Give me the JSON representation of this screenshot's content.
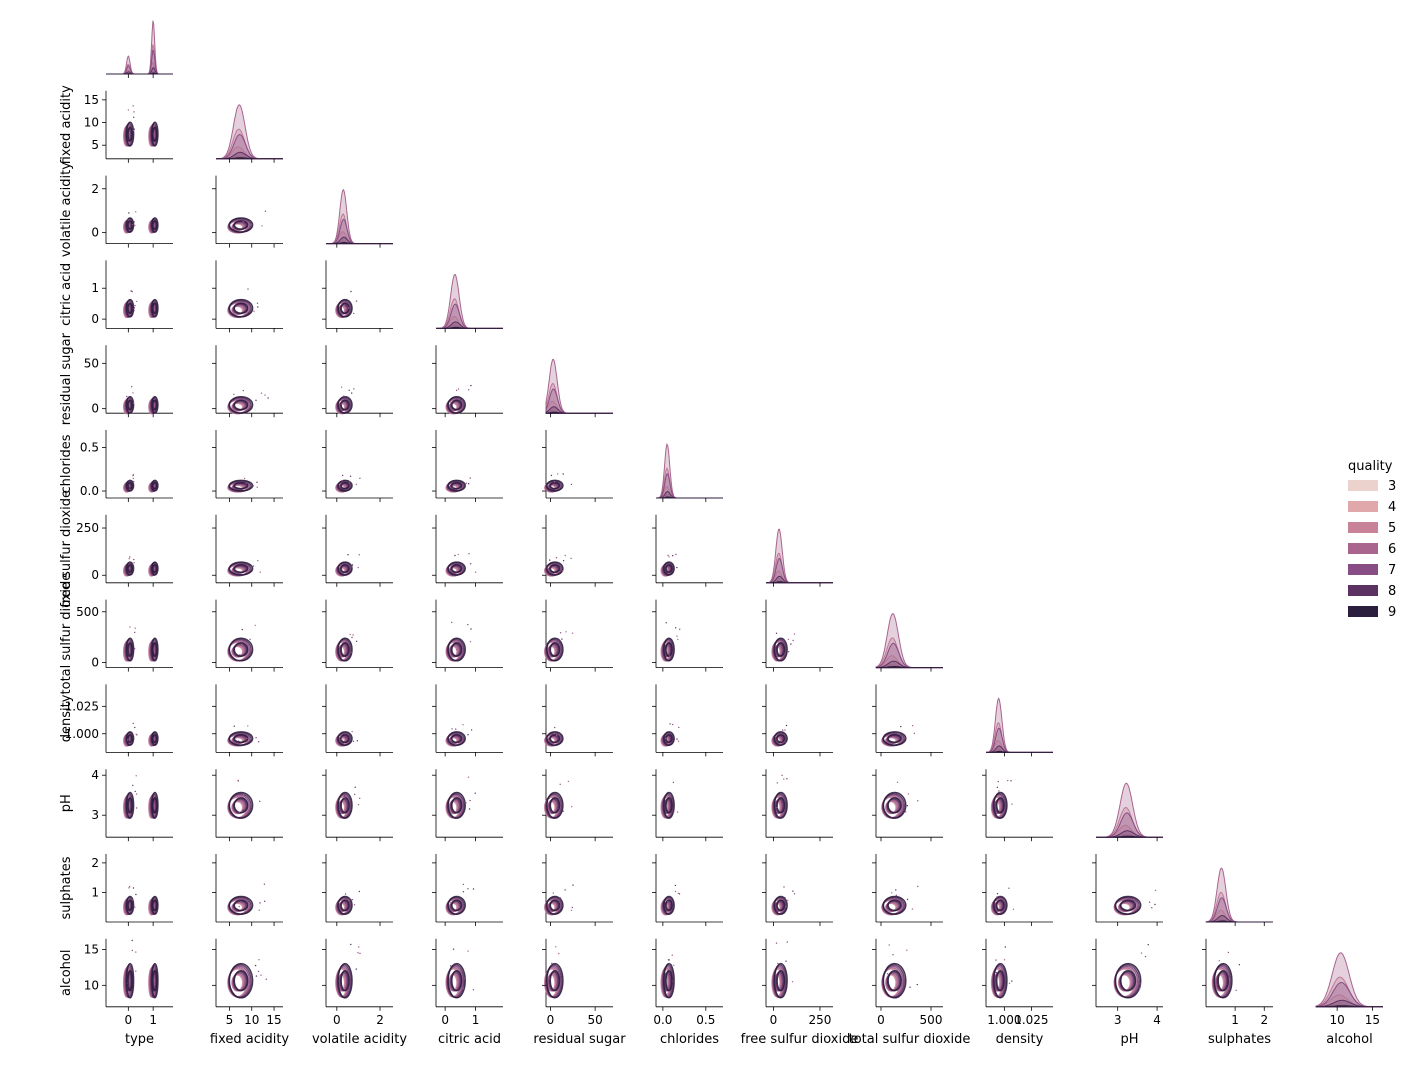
{
  "chart_data": {
    "type": "pairplot",
    "kind": "kde",
    "corner": true,
    "hue": "quality",
    "variables": [
      "type",
      "fixed acidity",
      "volatile acidity",
      "citric acid",
      "residual sugar",
      "chlorides",
      "free sulfur dioxide",
      "total sulfur dioxide",
      "density",
      "pH",
      "sulphates",
      "alcohol"
    ],
    "xlim": [
      [
        -0.9,
        1.8
      ],
      [
        2,
        17
      ],
      [
        -0.5,
        2.6
      ],
      [
        -0.3,
        1.9
      ],
      [
        -5,
        70
      ],
      [
        -0.08,
        0.7
      ],
      [
        -40,
        320
      ],
      [
        -50,
        620
      ],
      [
        0.983,
        1.045
      ],
      [
        2.45,
        4.15
      ],
      [
        0.0,
        2.3
      ],
      [
        7,
        16.5
      ]
    ],
    "ylim": [
      [
        -0.9,
        1.8
      ],
      [
        2,
        17
      ],
      [
        -0.5,
        2.6
      ],
      [
        -0.3,
        1.9
      ],
      [
        -5,
        70
      ],
      [
        -0.08,
        0.7
      ],
      [
        -40,
        320
      ],
      [
        -50,
        620
      ],
      [
        0.983,
        1.045
      ],
      [
        2.45,
        4.15
      ],
      [
        0.0,
        2.3
      ],
      [
        7,
        16.5
      ]
    ],
    "ticks": [
      {
        "values": [
          0,
          1
        ],
        "labels": [
          "0",
          "1"
        ]
      },
      {
        "values": [
          5,
          10,
          15
        ],
        "labels": [
          "5",
          "10",
          "15"
        ]
      },
      {
        "values": [
          0,
          2
        ],
        "labels": [
          "0",
          "2"
        ]
      },
      {
        "values": [
          0,
          1
        ],
        "labels": [
          "0",
          "1"
        ]
      },
      {
        "values": [
          0,
          50
        ],
        "labels": [
          "0",
          "50"
        ]
      },
      {
        "values": [
          0.0,
          0.5
        ],
        "labels": [
          "0.0",
          "0.5"
        ]
      },
      {
        "values": [
          0,
          250
        ],
        "labels": [
          "0",
          "250"
        ]
      },
      {
        "values": [
          0,
          500
        ],
        "labels": [
          "0",
          "500"
        ]
      },
      {
        "values": [
          1.0,
          1.025
        ],
        "labels": [
          "1.000",
          "1.025"
        ]
      },
      {
        "values": [
          3,
          4
        ],
        "labels": [
          "3",
          "4"
        ]
      },
      {
        "values": [
          1,
          2
        ],
        "labels": [
          "1",
          "2"
        ]
      },
      {
        "values": [
          10,
          15
        ],
        "labels": [
          "10",
          "15"
        ]
      }
    ],
    "y_ticks_override": {
      "1": {
        "values": [
          5,
          10,
          15
        ],
        "labels": [
          "5",
          "10",
          "15"
        ]
      },
      "10": {
        "values": [
          1,
          2
        ],
        "labels": [
          "1",
          "2"
        ]
      }
    },
    "distributions": [
      {
        "mean": [
          0,
          1
        ],
        "weights": [
          0.25,
          0.75
        ],
        "sd": [
          0.07,
          0.06
        ]
      },
      {
        "mean": [
          7.2
        ],
        "sd": [
          1.3
        ]
      },
      {
        "mean": [
          0.3
        ],
        "sd": [
          0.16
        ]
      },
      {
        "mean": [
          0.32
        ],
        "sd": [
          0.14
        ]
      },
      {
        "mean": [
          3.0
        ],
        "sd": [
          4.5
        ]
      },
      {
        "mean": [
          0.05
        ],
        "sd": [
          0.03
        ]
      },
      {
        "mean": [
          30
        ],
        "sd": [
          17
        ]
      },
      {
        "mean": [
          118
        ],
        "sd": [
          56
        ]
      },
      {
        "mean": [
          0.9947
        ],
        "sd": [
          0.003
        ]
      },
      {
        "mean": [
          3.22
        ],
        "sd": [
          0.16
        ]
      },
      {
        "mean": [
          0.53
        ],
        "sd": [
          0.15
        ]
      },
      {
        "mean": [
          10.5
        ],
        "sd": [
          1.2
        ]
      }
    ],
    "legend": {
      "title": "quality",
      "entries": [
        "3",
        "4",
        "5",
        "6",
        "7",
        "8",
        "9"
      ],
      "colors": [
        "#ebd2cc",
        "#e0a8aa",
        "#c88398",
        "#a9658e",
        "#874d84",
        "#5c3263",
        "#2c1e3d"
      ],
      "placement": "center-right"
    },
    "grid": false
  }
}
